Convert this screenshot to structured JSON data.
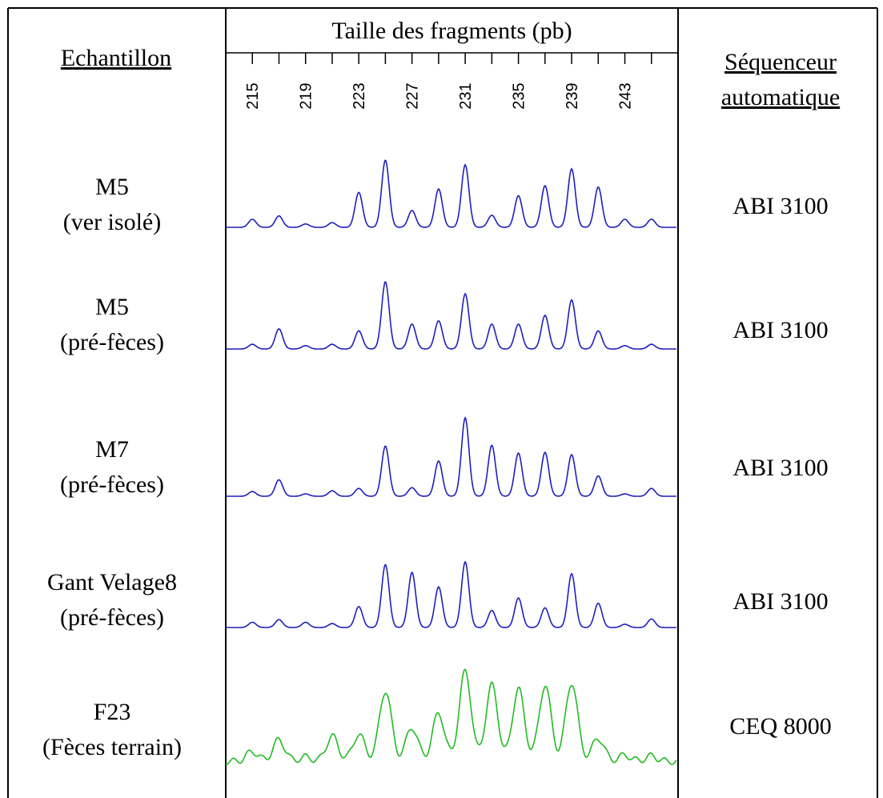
{
  "header": {
    "sample_column": "Echantillon",
    "axis_title": "Taille des fragments (pb)",
    "sequencer_column_line1": "Séquenceur",
    "sequencer_column_line2": "automatique"
  },
  "rows": [
    {
      "sample_line1": "M5",
      "sample_line2": "(ver isolé)",
      "sequencer": "ABI 3100",
      "color": "#1f1fbf"
    },
    {
      "sample_line1": "M5",
      "sample_line2": "(pré-fèces)",
      "sequencer": "ABI 3100",
      "color": "#1f1fbf"
    },
    {
      "sample_line1": "M7",
      "sample_line2": "(pré-fèces)",
      "sequencer": "ABI 3100",
      "color": "#1f1fbf"
    },
    {
      "sample_line1": "Gant Velage8",
      "sample_line2": "(pré-fèces)",
      "sequencer": "ABI 3100",
      "color": "#1f1fbf"
    },
    {
      "sample_line1": "F23",
      "sample_line2": "(Fèces terrain)",
      "sequencer": "CEQ 8000",
      "color": "#22bb22"
    }
  ],
  "chart_data": {
    "type": "line",
    "title": "Taille des fragments (pb)",
    "xlabel": "Taille des fragments (pb)",
    "ylabel": "",
    "xlim": [
      213,
      247
    ],
    "tick_labels": [
      "215",
      "219",
      "223",
      "227",
      "231",
      "235",
      "239",
      "243"
    ],
    "tick_values": [
      215,
      219,
      223,
      227,
      231,
      235,
      239,
      243
    ],
    "minor_ticks": [
      215,
      217,
      219,
      221,
      223,
      225,
      227,
      229,
      231,
      233,
      235,
      237,
      239,
      241,
      243,
      245
    ],
    "grid": false,
    "series": [
      {
        "name": "M5 (ver isolé)",
        "peaks": [
          [
            215,
            0.12
          ],
          [
            217,
            0.17
          ],
          [
            219,
            0.05
          ],
          [
            221,
            0.07
          ],
          [
            223,
            0.52
          ],
          [
            225,
            1.0
          ],
          [
            227,
            0.25
          ],
          [
            229,
            0.57
          ],
          [
            231,
            0.93
          ],
          [
            233,
            0.18
          ],
          [
            235,
            0.47
          ],
          [
            237,
            0.62
          ],
          [
            239,
            0.87
          ],
          [
            241,
            0.6
          ],
          [
            243,
            0.12
          ],
          [
            245,
            0.12
          ]
        ]
      },
      {
        "name": "M5 (pré-fèces)",
        "peaks": [
          [
            215,
            0.07
          ],
          [
            217,
            0.3
          ],
          [
            219,
            0.05
          ],
          [
            221,
            0.07
          ],
          [
            223,
            0.27
          ],
          [
            225,
            1.0
          ],
          [
            227,
            0.37
          ],
          [
            229,
            0.42
          ],
          [
            231,
            0.82
          ],
          [
            233,
            0.37
          ],
          [
            235,
            0.37
          ],
          [
            237,
            0.5
          ],
          [
            239,
            0.73
          ],
          [
            241,
            0.27
          ],
          [
            243,
            0.05
          ],
          [
            245,
            0.07
          ]
        ]
      },
      {
        "name": "M7 (pré-fèces)",
        "peaks": [
          [
            215,
            0.06
          ],
          [
            217,
            0.21
          ],
          [
            219,
            0.03
          ],
          [
            221,
            0.07
          ],
          [
            223,
            0.1
          ],
          [
            225,
            0.64
          ],
          [
            227,
            0.11
          ],
          [
            229,
            0.45
          ],
          [
            231,
            1.0
          ],
          [
            233,
            0.65
          ],
          [
            235,
            0.55
          ],
          [
            237,
            0.56
          ],
          [
            239,
            0.53
          ],
          [
            241,
            0.26
          ],
          [
            243,
            0.03
          ],
          [
            245,
            0.1
          ]
        ]
      },
      {
        "name": "Gant Velage8 (pré-fèces)",
        "peaks": [
          [
            215,
            0.08
          ],
          [
            217,
            0.12
          ],
          [
            219,
            0.08
          ],
          [
            221,
            0.06
          ],
          [
            223,
            0.32
          ],
          [
            225,
            0.96
          ],
          [
            227,
            0.84
          ],
          [
            229,
            0.62
          ],
          [
            231,
            1.0
          ],
          [
            233,
            0.26
          ],
          [
            235,
            0.45
          ],
          [
            237,
            0.3
          ],
          [
            239,
            0.82
          ],
          [
            241,
            0.37
          ],
          [
            243,
            0.05
          ],
          [
            245,
            0.13
          ]
        ]
      },
      {
        "name": "F23 (Fèces terrain)",
        "peaks": [
          [
            215,
            0.11
          ],
          [
            217,
            0.24
          ],
          [
            219,
            0.05
          ],
          [
            221,
            0.28
          ],
          [
            223,
            0.3
          ],
          [
            225,
            0.79
          ],
          [
            227,
            0.38
          ],
          [
            229,
            0.54
          ],
          [
            231,
            1.0
          ],
          [
            233,
            0.85
          ],
          [
            235,
            0.81
          ],
          [
            237,
            0.85
          ],
          [
            239,
            0.88
          ],
          [
            241,
            0.26
          ],
          [
            243,
            0.07
          ],
          [
            245,
            0.06
          ]
        ]
      }
    ]
  }
}
